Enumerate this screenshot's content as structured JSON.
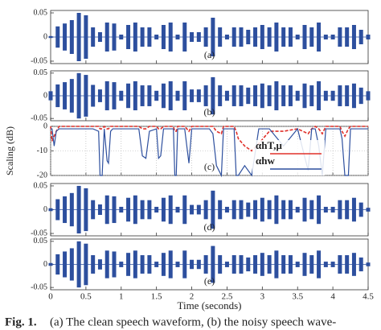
{
  "chart_data": [
    {
      "type": "waveform",
      "label": "(a)",
      "color": "#2d4f9e",
      "x": [
        0,
        0.1,
        0.2,
        0.3,
        0.4,
        0.5,
        0.6,
        0.7,
        0.8,
        0.9,
        1,
        1.1,
        1.2,
        1.3,
        1.4,
        1.5,
        1.6,
        1.7,
        1.8,
        1.9,
        2,
        2.1,
        2.2,
        2.3,
        2.4,
        2.5,
        2.6,
        2.7,
        2.8,
        2.9,
        3,
        3.1,
        3.2,
        3.3,
        3.4,
        3.5,
        3.6,
        3.7,
        3.8,
        3.9,
        4,
        4.1,
        4.2,
        4.3,
        4.4,
        4.5
      ],
      "values": [
        0.002,
        0.022,
        0.028,
        0.035,
        0.05,
        0.045,
        0.02,
        0.01,
        0.03,
        0.028,
        0.005,
        0.025,
        0.03,
        0.02,
        0.02,
        0.005,
        0.025,
        0.03,
        0.005,
        0.03,
        0.01,
        0.01,
        0.02,
        0.04,
        0.02,
        0.005,
        0.02,
        0.02,
        0.015,
        0.02,
        0.025,
        0.02,
        0.03,
        0.02,
        0.02,
        0.005,
        0.025,
        0.02,
        0.03,
        0.005,
        0.005,
        0.02,
        0.02,
        0.025,
        0.015,
        0.005
      ],
      "xlim": [
        0,
        4.5
      ],
      "xticks": [
        0,
        0.5,
        1,
        1.5,
        2,
        2.5,
        3,
        3.5,
        4,
        4.5
      ],
      "ylim": [
        -0.055,
        0.055
      ],
      "yticks": [
        0.05,
        0,
        -0.05
      ]
    },
    {
      "type": "waveform",
      "label": "(b)",
      "color": "#2d4f9e",
      "x": [
        0,
        0.1,
        0.2,
        0.3,
        0.4,
        0.5,
        0.6,
        0.7,
        0.8,
        0.9,
        1,
        1.1,
        1.2,
        1.3,
        1.4,
        1.5,
        1.6,
        1.7,
        1.8,
        1.9,
        2,
        2.1,
        2.2,
        2.3,
        2.4,
        2.5,
        2.6,
        2.7,
        2.8,
        2.9,
        3,
        3.1,
        3.2,
        3.3,
        3.4,
        3.5,
        3.6,
        3.7,
        3.8,
        3.9,
        4,
        4.1,
        4.2,
        4.3,
        4.4,
        4.5
      ],
      "values": [
        0.01,
        0.025,
        0.03,
        0.037,
        0.05,
        0.046,
        0.024,
        0.014,
        0.032,
        0.03,
        0.011,
        0.027,
        0.032,
        0.023,
        0.023,
        0.011,
        0.027,
        0.032,
        0.011,
        0.032,
        0.014,
        0.014,
        0.023,
        0.041,
        0.023,
        0.011,
        0.023,
        0.023,
        0.018,
        0.023,
        0.027,
        0.023,
        0.032,
        0.023,
        0.023,
        0.011,
        0.027,
        0.023,
        0.032,
        0.011,
        0.011,
        0.023,
        0.023,
        0.027,
        0.018,
        0.01
      ],
      "xlim": [
        0,
        4.5
      ],
      "xticks": [
        0,
        0.5,
        1,
        1.5,
        2,
        2.5,
        3,
        3.5,
        4,
        4.5
      ],
      "ylim": [
        -0.055,
        0.055
      ],
      "yticks": [
        0.05,
        0,
        -0.05
      ]
    },
    {
      "type": "line",
      "label": "(c)",
      "ylabel": "Scaling (dB)",
      "grid": true,
      "legend": "lower right",
      "x": [
        0,
        0.02,
        0.05,
        0.08,
        0.12,
        0.6,
        0.68,
        0.7,
        0.73,
        0.76,
        0.8,
        0.82,
        0.85,
        0.88,
        1.25,
        1.3,
        1.35,
        1.4,
        1.5,
        1.53,
        1.56,
        1.6,
        1.74,
        1.76,
        1.78,
        1.8,
        1.9,
        1.93,
        1.96,
        2,
        2.25,
        2.3,
        2.35,
        2.42,
        2.45,
        2.6,
        2.63,
        2.66,
        2.75,
        2.85,
        2.95,
        3.1,
        3.3,
        3.5,
        3.65,
        3.7,
        3.75,
        3.8,
        3.85,
        3.9,
        4.1,
        4.13,
        4.17,
        4.22,
        4.25,
        4.5
      ],
      "series": [
        {
          "name": "αhT,μ",
          "color": "#e0302a",
          "dashed": true,
          "values": [
            0,
            -6,
            -4,
            -2,
            0,
            0,
            0,
            -1,
            -1,
            0,
            -1,
            -1,
            0,
            0,
            0,
            -1,
            -1,
            0,
            0,
            -1,
            -1,
            0,
            0,
            -2,
            -2,
            0,
            0,
            -1,
            -2,
            0,
            0,
            0,
            -2,
            -3,
            0,
            0,
            -2,
            -5,
            -8,
            -10,
            -7,
            -2,
            -2,
            -1,
            -3,
            -1,
            0,
            -1,
            -3,
            0,
            0,
            -2,
            -4,
            -1,
            0,
            0
          ]
        },
        {
          "name": "αhw",
          "color": "#2d4f9e",
          "dashed": false,
          "values": [
            -1,
            -1,
            -8,
            -2,
            -1,
            -1,
            -2,
            -20,
            -20,
            -1,
            -14,
            -15,
            -2,
            -1,
            -1,
            -12,
            -13,
            -2,
            -1,
            -13,
            -12,
            -1,
            -1,
            -20,
            -20,
            -1,
            -1,
            -8,
            -15,
            -1,
            -1,
            -3,
            -16,
            -20,
            -1,
            -1,
            -20,
            -20,
            -16,
            -20,
            -1,
            -1,
            -8,
            -1,
            -18,
            -1,
            -1,
            -8,
            -20,
            -1,
            -1,
            -5,
            -20,
            -20,
            -1,
            -1
          ]
        }
      ],
      "xlim": [
        0,
        4.5
      ],
      "xticks": [
        0,
        0.5,
        1,
        1.5,
        2,
        2.5,
        3,
        3.5,
        4,
        4.5
      ],
      "ylim": [
        -20,
        0
      ],
      "yticks": [
        0,
        -10,
        -20
      ]
    },
    {
      "type": "waveform",
      "label": "(d)",
      "color": "#2d4f9e",
      "x": [
        0,
        0.1,
        0.2,
        0.3,
        0.4,
        0.5,
        0.6,
        0.7,
        0.8,
        0.9,
        1,
        1.1,
        1.2,
        1.3,
        1.4,
        1.5,
        1.6,
        1.7,
        1.8,
        1.9,
        2,
        2.1,
        2.2,
        2.3,
        2.4,
        2.5,
        2.6,
        2.7,
        2.8,
        2.9,
        3,
        3.1,
        3.2,
        3.3,
        3.4,
        3.5,
        3.6,
        3.7,
        3.8,
        3.9,
        4,
        4.1,
        4.2,
        4.3,
        4.4,
        4.5
      ],
      "values": [
        0.003,
        0.022,
        0.028,
        0.035,
        0.05,
        0.045,
        0.02,
        0.011,
        0.03,
        0.028,
        0.006,
        0.025,
        0.03,
        0.02,
        0.02,
        0.006,
        0.025,
        0.03,
        0.006,
        0.03,
        0.01,
        0.01,
        0.02,
        0.04,
        0.02,
        0.006,
        0.02,
        0.02,
        0.015,
        0.02,
        0.025,
        0.02,
        0.03,
        0.02,
        0.02,
        0.006,
        0.025,
        0.02,
        0.03,
        0.006,
        0.006,
        0.02,
        0.02,
        0.025,
        0.015,
        0.004
      ],
      "xlim": [
        0,
        4.5
      ],
      "xticks": [
        0,
        0.5,
        1,
        1.5,
        2,
        2.5,
        3,
        3.5,
        4,
        4.5
      ],
      "ylim": [
        -0.055,
        0.055
      ],
      "yticks": [
        0.05,
        0,
        -0.05
      ]
    },
    {
      "type": "waveform",
      "label": "(e)",
      "color": "#2d4f9e",
      "xlabel": "Time (seconds)",
      "x": [
        0,
        0.1,
        0.2,
        0.3,
        0.4,
        0.5,
        0.6,
        0.7,
        0.8,
        0.9,
        1,
        1.1,
        1.2,
        1.3,
        1.4,
        1.5,
        1.6,
        1.7,
        1.8,
        1.9,
        2,
        2.1,
        2.2,
        2.3,
        2.4,
        2.5,
        2.6,
        2.7,
        2.8,
        2.9,
        3,
        3.1,
        3.2,
        3.3,
        3.4,
        3.5,
        3.6,
        3.7,
        3.8,
        3.9,
        4,
        4.1,
        4.2,
        4.3,
        4.4,
        4.5
      ],
      "values": [
        0.003,
        0.022,
        0.028,
        0.035,
        0.05,
        0.045,
        0.02,
        0.011,
        0.03,
        0.028,
        0.006,
        0.025,
        0.03,
        0.02,
        0.02,
        0.006,
        0.025,
        0.03,
        0.006,
        0.03,
        0.01,
        0.01,
        0.02,
        0.04,
        0.02,
        0.006,
        0.02,
        0.02,
        0.015,
        0.02,
        0.025,
        0.02,
        0.03,
        0.02,
        0.02,
        0.006,
        0.025,
        0.02,
        0.03,
        0.006,
        0.006,
        0.02,
        0.02,
        0.025,
        0.015,
        0.004
      ],
      "xlim": [
        0,
        4.5
      ],
      "xticks": [
        0,
        0.5,
        1,
        1.5,
        2,
        2.5,
        3,
        3.5,
        4,
        4.5
      ],
      "ylim": [
        -0.055,
        0.055
      ],
      "yticks": [
        0.05,
        0,
        -0.05
      ]
    }
  ],
  "caption": {
    "label": "Fig. 1.",
    "text": "(a) The clean speech waveform, (b) the noisy speech wave-"
  }
}
